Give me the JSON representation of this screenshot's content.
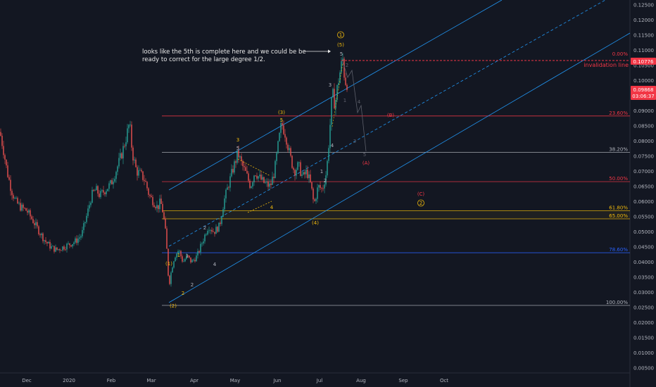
{
  "chart_data": {
    "type": "candlestick",
    "y_ticks": [
      "0.12500",
      "0.12000",
      "0.11500",
      "0.11000",
      "0.10500",
      "0.10000",
      "0.09500",
      "0.09000",
      "0.08500",
      "0.08000",
      "0.07500",
      "0.07000",
      "0.06500",
      "0.06000",
      "0.05500",
      "0.05000",
      "0.04500",
      "0.04000",
      "0.03500",
      "0.03000",
      "0.02500",
      "0.02000",
      "0.01500",
      "0.01000",
      "0.00500"
    ],
    "x_ticks": [
      "Dec",
      "2020",
      "Feb",
      "Mar",
      "Apr",
      "May",
      "Jun",
      "Jul",
      "Aug",
      "Sep",
      "Oct"
    ],
    "price_badge": {
      "value": "0.10776",
      "color": "#f23645"
    },
    "current_badge": {
      "value": "0.09868",
      "time": "03:06:37",
      "color": "#f23645"
    },
    "invalidation_label": "invalidation line",
    "fib_levels": [
      {
        "label": "0.00%",
        "price": 0.1078,
        "color": "#f23645"
      },
      {
        "label": "23.60%",
        "price": 0.0883,
        "color": "#f23645"
      },
      {
        "label": "38.20%",
        "price": 0.0763,
        "color": "#b2b5be"
      },
      {
        "label": "50.00%",
        "price": 0.0666,
        "color": "#f23645"
      },
      {
        "label": "61.80%",
        "price": 0.057,
        "color": "#f0b90b"
      },
      {
        "label": "65.00%",
        "price": 0.0543,
        "color": "#f0b90b"
      },
      {
        "label": "78.60%",
        "price": 0.0431,
        "color": "#2962ff"
      },
      {
        "label": "100.00%",
        "price": 0.0257,
        "color": "#b2b5be"
      }
    ],
    "annotation": {
      "line1": "looks like the 5th is complete here and we could be be",
      "line2": "ready to correct for the large degree 1/2."
    },
    "wave_labels": [
      {
        "t": "(1)",
        "x": 240,
        "y": 377,
        "c": "#f0b90b"
      },
      {
        "t": "(2)",
        "x": 246,
        "y": 437,
        "c": "#f0b90b"
      },
      {
        "t": "1",
        "x": 254,
        "y": 365,
        "c": "#f0b90b"
      },
      {
        "t": "2",
        "x": 260,
        "y": 419,
        "c": "#f0b90b"
      },
      {
        "t": "1",
        "x": 266,
        "y": 366,
        "c": "#b2b5be"
      },
      {
        "t": "2",
        "x": 273,
        "y": 407,
        "c": "#b2b5be"
      },
      {
        "t": "2",
        "x": 291,
        "y": 326,
        "c": "#b2b5be"
      },
      {
        "t": "4",
        "x": 305,
        "y": 378,
        "c": "#b2b5be"
      },
      {
        "t": "3",
        "x": 338,
        "y": 201,
        "c": "#f0b90b"
      },
      {
        "t": "5",
        "x": 338,
        "y": 213,
        "c": "#b2b5be"
      },
      {
        "t": "4",
        "x": 386,
        "y": 297,
        "c": "#f0b90b"
      },
      {
        "t": "(3)",
        "x": 400,
        "y": 162,
        "c": "#f0b90b"
      },
      {
        "t": "5",
        "x": 400,
        "y": 173,
        "c": "#f0b90b"
      },
      {
        "t": "(4)",
        "x": 448,
        "y": 319,
        "c": "#f0b90b"
      },
      {
        "t": "2",
        "x": 462,
        "y": 259,
        "c": "#b2b5be"
      },
      {
        "t": "1",
        "x": 457,
        "y": 246,
        "c": "#b2b5be"
      },
      {
        "t": "3",
        "x": 469,
        "y": 123,
        "c": "#b2b5be"
      },
      {
        "t": "4",
        "x": 472,
        "y": 209,
        "c": "#b2b5be"
      },
      {
        "t": "(5)",
        "x": 484,
        "y": 66,
        "c": "#f0b90b"
      },
      {
        "t": "5",
        "x": 485,
        "y": 79,
        "c": "#b2b5be"
      },
      {
        "t": "2",
        "x": 493,
        "y": 95,
        "c": "#5d606b"
      },
      {
        "t": "1",
        "x": 490,
        "y": 145,
        "c": "#5d606b"
      },
      {
        "t": "4",
        "x": 510,
        "y": 147,
        "c": "#5d606b"
      },
      {
        "t": "3",
        "x": 504,
        "y": 203,
        "c": "#5d606b"
      },
      {
        "t": "5",
        "x": 518,
        "y": 222,
        "c": "#5d606b"
      },
      {
        "t": "(A)",
        "x": 520,
        "y": 234,
        "c": "#f23645"
      },
      {
        "t": "(B)",
        "x": 555,
        "y": 166,
        "c": "#f23645"
      },
      {
        "t": "(C)",
        "x": 598,
        "y": 278,
        "c": "#f23645"
      }
    ],
    "circled_labels": [
      {
        "t": "1",
        "x": 484,
        "y": 52,
        "c": "#f0b90b"
      },
      {
        "t": "2",
        "x": 598,
        "y": 291,
        "c": "#f0b90b"
      }
    ],
    "up_color": "#26a69a",
    "down_color": "#ef5350"
  }
}
